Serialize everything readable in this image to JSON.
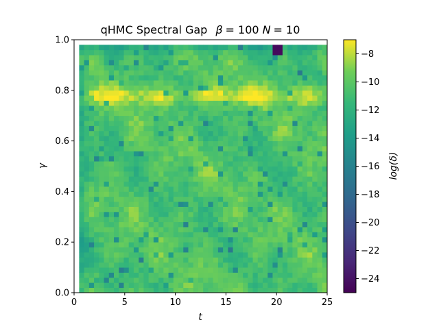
{
  "chart_data": {
    "type": "heatmap",
    "title": "qHMC Spectral Gap  β = 100 N = 10",
    "title_parts": {
      "prefix": "qHMC Spectral Gap",
      "beta_sym": "β",
      "beta_val": "= 100",
      "n_sym": "N",
      "n_val": "= 10"
    },
    "xlabel": "t",
    "ylabel": "γ",
    "colorbar_label": "log(δ)",
    "xlim": [
      0,
      25
    ],
    "ylim": [
      0.0,
      1.0
    ],
    "x_ticks": [
      0,
      5,
      10,
      15,
      20,
      25
    ],
    "y_ticks": [
      "0.0",
      "0.2",
      "0.4",
      "0.6",
      "0.8",
      "1.0"
    ],
    "colorbar_ticks": [
      -8,
      -10,
      -12,
      -14,
      -16,
      -18,
      -20,
      -22,
      -24
    ],
    "colorbar_range": [
      -25,
      -7
    ],
    "colormap": "viridis",
    "grid": {
      "t_start": 0.5,
      "t_end": 25,
      "t_cols": 50,
      "gamma_start": 0.0,
      "gamma_end": 0.98,
      "gamma_rows": 49
    },
    "typical_value": -10.5,
    "bright_band": {
      "gamma": 0.78,
      "value": -7.8
    },
    "min_value": {
      "t": 20.2,
      "gamma": 0.955,
      "value": -24.5
    }
  }
}
